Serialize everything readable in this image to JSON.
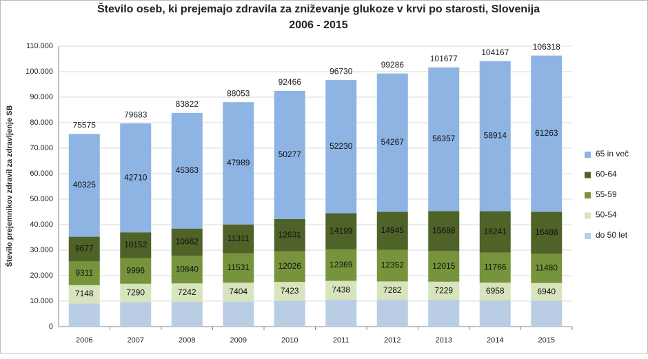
{
  "chart_data": {
    "type": "stacked_bar",
    "title": "Število oseb, ki prejemajo zdravila za zniževanje glukoze v krvi po starosti, Slovenija",
    "subtitle": "2006 - 2015",
    "y_label": "Število prejemnikov zdravil za zdravljenje SB",
    "categories": [
      "2006",
      "2007",
      "2008",
      "2009",
      "2010",
      "2011",
      "2012",
      "2013",
      "2014",
      "2015"
    ],
    "series": [
      {
        "name": "do 50 let",
        "color": "#b9cde5",
        "values": [
          9114,
          9535,
          9715,
          9818,
          10109,
          10494,
          10440,
          10388,
          10288,
          10147
        ]
      },
      {
        "name": "50-54",
        "color": "#d7e4bd",
        "values": [
          7148,
          7290,
          7242,
          7404,
          7423,
          7438,
          7282,
          7229,
          6958,
          6940
        ]
      },
      {
        "name": "55-59",
        "color": "#77933c",
        "values": [
          9311,
          9996,
          10840,
          11531,
          12026,
          12369,
          12352,
          12015,
          11766,
          11480
        ]
      },
      {
        "name": "60-64",
        "color": "#4f6228",
        "values": [
          9677,
          10152,
          10662,
          11311,
          12631,
          14199,
          14945,
          15688,
          16241,
          16488
        ]
      },
      {
        "name": "65 in več",
        "color": "#8eb4e3",
        "values": [
          40325,
          42710,
          45363,
          47989,
          50277,
          52230,
          54267,
          56357,
          58914,
          61263
        ]
      }
    ],
    "labeled_series": [
      1,
      2,
      3,
      4
    ],
    "totals": [
      75575,
      79683,
      83822,
      88053,
      92466,
      96730,
      99286,
      101677,
      104167,
      106318
    ],
    "ylim": [
      0,
      110000
    ],
    "yticks": [
      0,
      {
        "value": 10000,
        "label": "10.000"
      },
      {
        "value": 20000,
        "label": "20.000"
      },
      {
        "value": 30000,
        "label": "30.000"
      },
      {
        "value": 40000,
        "label": "40.000"
      },
      {
        "value": 50000,
        "label": "50.000"
      },
      {
        "value": 60000,
        "label": "60.000"
      },
      {
        "value": 70000,
        "label": "70.000"
      },
      {
        "value": 80000,
        "label": "80.000"
      },
      {
        "value": 90000,
        "label": "90.000"
      },
      {
        "value": 100000,
        "label": "100.000"
      },
      {
        "value": 110000,
        "label": "110.000"
      }
    ],
    "grid": true,
    "legend": "right"
  }
}
